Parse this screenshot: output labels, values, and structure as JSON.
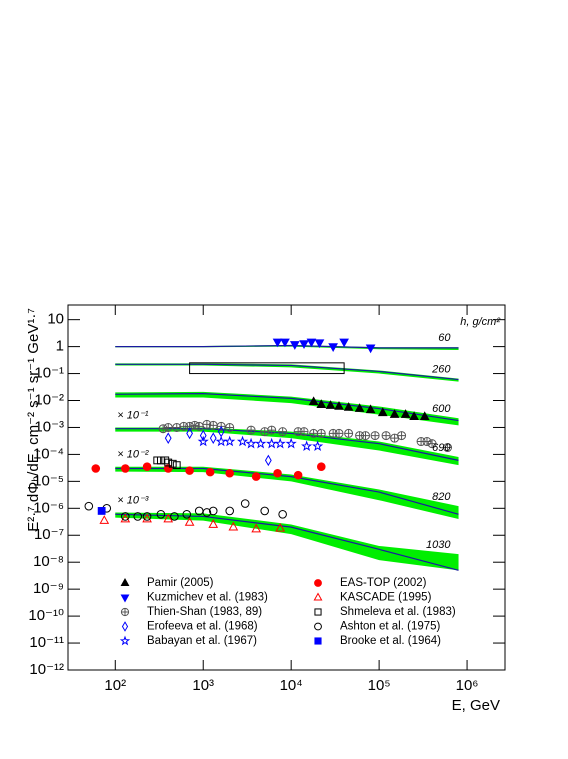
{
  "chart_data": {
    "type": "scatter",
    "x_label": "E, GeV",
    "y_label": "E²·⁷ dΦₕ/dE,  cm⁻² s⁻¹ sr⁻¹ GeV¹·⁷",
    "xscale": "log",
    "yscale": "log",
    "xlim": [
      29,
      2700000
    ],
    "ylim": [
      1e-12,
      35
    ],
    "xticks": [
      {
        "value": 100,
        "label": "10²"
      },
      {
        "value": 1000,
        "label": "10³"
      },
      {
        "value": 10000,
        "label": "10⁴"
      },
      {
        "value": 100000,
        "label": "10⁵"
      },
      {
        "value": 1000000,
        "label": "10⁶"
      }
    ],
    "yticks": [
      10,
      1,
      {
        "value": 0.1,
        "label": "10⁻¹"
      },
      {
        "value": 0.01,
        "label": "10⁻²"
      },
      {
        "value": 0.001,
        "label": "10⁻³"
      },
      {
        "value": 0.0001,
        "label": "10⁻⁴"
      },
      {
        "value": 1e-05,
        "label": "10⁻⁵"
      },
      {
        "value": 1e-06,
        "label": "10⁻⁶"
      },
      {
        "value": 1e-07,
        "label": "10⁻⁷"
      },
      {
        "value": 1e-08,
        "label": "10⁻⁸"
      },
      {
        "value": 1e-09,
        "label": "10⁻⁹"
      },
      {
        "value": 1e-10,
        "label": "10⁻¹⁰"
      },
      {
        "value": 1e-11,
        "label": "10⁻¹¹"
      },
      {
        "value": 1e-12,
        "label": "10⁻¹²"
      }
    ],
    "depth_title": "h, g/cm²",
    "band_color": "#00ee00",
    "line_color": "#1a1aa0",
    "curves": [
      {
        "depth": "60",
        "x": [
          100,
          1000,
          10000,
          100000,
          800000
        ],
        "values": [
          1,
          1,
          1.1,
          0.9,
          0.9
        ],
        "lower": [
          0.95,
          0.95,
          1.0,
          0.8,
          0.75
        ],
        "upper": [
          1.05,
          1.05,
          1.15,
          0.95,
          0.95
        ]
      },
      {
        "depth": "260",
        "x": [
          100,
          1000,
          10000,
          100000,
          800000
        ],
        "values": [
          0.22,
          0.22,
          0.2,
          0.12,
          0.06
        ],
        "lower": [
          0.2,
          0.2,
          0.17,
          0.1,
          0.05
        ],
        "upper": [
          0.24,
          0.24,
          0.22,
          0.13,
          0.065
        ]
      },
      {
        "depth": "600",
        "x": [
          100,
          1000,
          10000,
          100000,
          800000
        ],
        "values": [
          0.017,
          0.018,
          0.012,
          0.005,
          0.0018
        ],
        "lower": [
          0.013,
          0.013,
          0.008,
          0.003,
          0.0012
        ],
        "upper": [
          0.02,
          0.021,
          0.014,
          0.006,
          0.0022
        ]
      },
      {
        "depth": "690",
        "scale_label": "× 10⁻¹",
        "x": [
          100,
          1000,
          10000,
          100000,
          800000
        ],
        "values": [
          0.0009,
          0.0009,
          0.0006,
          0.00025,
          6e-05
        ],
        "lower": [
          0.0007,
          0.0007,
          0.0004,
          0.00014,
          4e-05
        ],
        "upper": [
          0.001,
          0.001,
          0.0007,
          0.0003,
          8e-05
        ]
      },
      {
        "depth": "820",
        "scale_label": "× 10⁻²",
        "x": [
          100,
          1000,
          10000,
          100000,
          800000
        ],
        "values": [
          3e-05,
          3e-05,
          1.5e-05,
          4e-06,
          6e-07
        ],
        "lower": [
          2.3e-05,
          2.2e-05,
          1e-05,
          2e-06,
          4e-07
        ],
        "upper": [
          3.5e-05,
          3.5e-05,
          1.8e-05,
          5e-06,
          1.2e-06
        ]
      },
      {
        "depth": "1030",
        "scale_label": "× 10⁻³",
        "x": [
          100,
          1000,
          10000,
          100000,
          800000
        ],
        "values": [
          6e-07,
          5e-07,
          2e-07,
          3e-08,
          5e-09
        ],
        "lower": [
          4.5e-07,
          3.5e-07,
          1.1e-07,
          1.2e-08,
          5e-09
        ],
        "upper": [
          7e-07,
          6.5e-07,
          2.5e-07,
          4e-08,
          2e-08
        ]
      }
    ],
    "series": [
      {
        "name": "Pamir (2005)",
        "marker": "triangle-up",
        "filled": true,
        "color": "#000000",
        "x": [
          18000,
          22000,
          28000,
          35000,
          45000,
          60000,
          80000,
          110000,
          150000,
          200000,
          250000,
          330000
        ],
        "values": [
          0.009,
          0.007,
          0.0065,
          0.006,
          0.0055,
          0.005,
          0.0045,
          0.0035,
          0.003,
          0.003,
          0.0025,
          0.0025
        ]
      },
      {
        "name": "EAS-TOP (2002)",
        "marker": "circle",
        "filled": true,
        "color": "#ff0000",
        "x": [
          60,
          130,
          230,
          400,
          700,
          1200,
          2000,
          4000,
          7000,
          12000,
          22000
        ],
        "values": [
          3e-05,
          3e-05,
          3.5e-05,
          3e-05,
          2.5e-05,
          2.2e-05,
          2e-05,
          1.5e-05,
          2e-05,
          1.7e-05,
          3.5e-05
        ]
      },
      {
        "name": "Kuzmichev et al. (1983)",
        "marker": "triangle-down",
        "filled": true,
        "color": "#0000ff",
        "x": [
          7000,
          8500,
          11000,
          14000,
          17000,
          21000,
          30000,
          40000,
          80000
        ],
        "values": [
          1.5,
          1.5,
          1.2,
          1.3,
          1.5,
          1.4,
          1,
          1.5,
          0.9
        ]
      },
      {
        "name": "KASCADE (1995)",
        "marker": "triangle-up",
        "filled": false,
        "color": "#ff0000",
        "x": [
          75,
          130,
          230,
          400,
          700,
          1300,
          2200,
          4000,
          7500
        ],
        "values": [
          3.5e-07,
          4e-07,
          4e-07,
          4e-07,
          3e-07,
          2.5e-07,
          2e-07,
          1.7e-07,
          1.8e-07
        ]
      },
      {
        "name": "Thien-Shan (1983, 89)",
        "marker": "circle-cross",
        "filled": false,
        "color": "#555555",
        "x": [
          350,
          400,
          500,
          600,
          700,
          800,
          900,
          1100,
          1300,
          1600,
          2000,
          3500,
          5000,
          6000,
          8000,
          12000,
          14000,
          18000,
          22000,
          30000,
          35000,
          45000,
          60000,
          70000,
          90000,
          120000,
          150000,
          180000,
          300000,
          350000,
          400000,
          600000
        ],
        "values": [
          0.0009,
          0.001,
          0.001,
          0.0011,
          0.0011,
          0.0012,
          0.0011,
          0.0013,
          0.0012,
          0.0011,
          0.001,
          0.0008,
          0.0007,
          0.0008,
          0.0007,
          0.0007,
          0.0007,
          0.0006,
          0.0006,
          0.0006,
          0.0006,
          0.0006,
          0.0005,
          0.0005,
          0.0005,
          0.0005,
          0.0004,
          0.0005,
          0.0003,
          0.0003,
          0.00025,
          0.00018
        ]
      },
      {
        "name": "Shmeleva et al. (1983)",
        "marker": "square",
        "filled": false,
        "color": "#000000",
        "x": [
          300,
          330,
          370,
          400,
          450,
          500
        ],
        "values": [
          6e-05,
          6e-05,
          6e-05,
          5e-05,
          4.5e-05,
          4e-05
        ],
        "region": {
          "x": [
            700,
            40000
          ],
          "values": [
            0.1,
            0.25
          ]
        }
      },
      {
        "name": "Erofeeva et al. (1968)",
        "marker": "diamond",
        "filled": false,
        "color": "#0000ff",
        "x": [
          400,
          700,
          1000,
          1300,
          1600,
          5500
        ],
        "values": [
          0.0004,
          0.0006,
          0.0005,
          0.0004,
          0.0007,
          6e-05
        ]
      },
      {
        "name": "Ashton et al. (1975)",
        "marker": "circle",
        "filled": false,
        "color": "#000000",
        "x": [
          50,
          80,
          130,
          180,
          230,
          330,
          470,
          650,
          900,
          1100,
          1300,
          2000,
          3000,
          5000,
          8000
        ],
        "values": [
          1.2e-06,
          1e-06,
          5e-07,
          5e-07,
          5e-07,
          6e-07,
          5e-07,
          6e-07,
          8e-07,
          7e-07,
          8e-07,
          8e-07,
          1.5e-06,
          8e-07,
          6e-07
        ]
      },
      {
        "name": "Babayan et al. (1967)",
        "marker": "star",
        "filled": false,
        "color": "#0000ff",
        "x": [
          1000,
          1600,
          2000,
          2800,
          3500,
          4500,
          6000,
          7500,
          10000,
          15000,
          20000
        ],
        "values": [
          0.0003,
          0.0003,
          0.0003,
          0.0003,
          0.00025,
          0.00025,
          0.00025,
          0.00025,
          0.00025,
          0.0002,
          0.0002
        ]
      },
      {
        "name": "Brooke et al. (1964)",
        "marker": "square",
        "filled": true,
        "color": "#0000ff",
        "x": [
          70
        ],
        "values": [
          8e-07
        ]
      }
    ]
  }
}
